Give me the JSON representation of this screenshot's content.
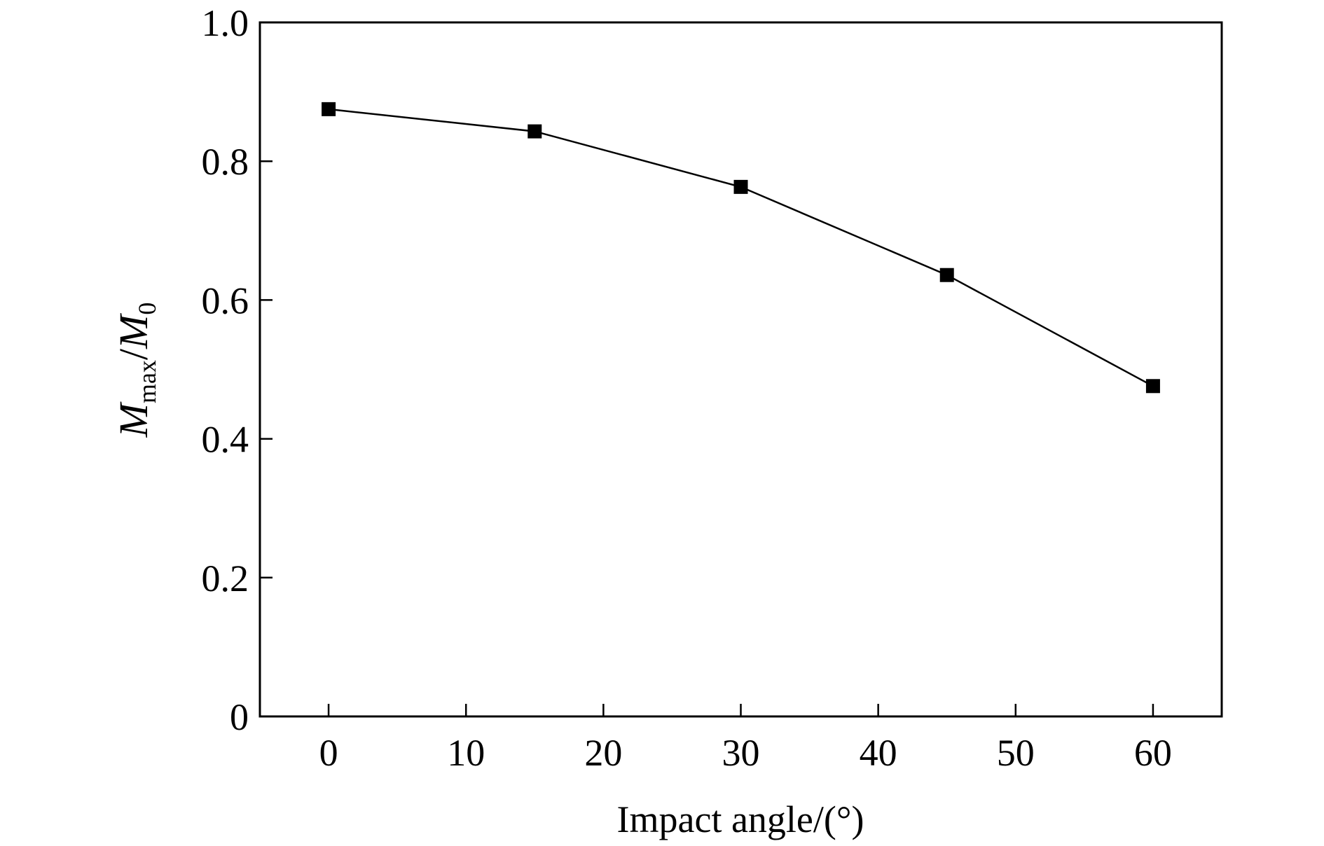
{
  "chart_data": {
    "type": "line",
    "xlabel": "Impact angle/(°)",
    "ylabel": {
      "main": "M",
      "sub": "max",
      "sep": "/",
      "main2": "M",
      "sub2": "0"
    },
    "xlim": [
      -5,
      65
    ],
    "ylim": [
      0,
      1.0
    ],
    "xticks": [
      0,
      10,
      20,
      30,
      40,
      50,
      60
    ],
    "yticks": [
      0,
      0.2,
      0.4,
      0.6,
      0.8,
      1.0
    ],
    "ytick_labels": [
      "0",
      "0.2",
      "0.4",
      "0.6",
      "0.8",
      "1.0"
    ],
    "grid": false,
    "series": [
      {
        "x": [
          0,
          15,
          30,
          45,
          60
        ],
        "y": [
          0.875,
          0.843,
          0.763,
          0.636,
          0.476
        ],
        "color": "#000000",
        "marker": "square"
      }
    ]
  }
}
